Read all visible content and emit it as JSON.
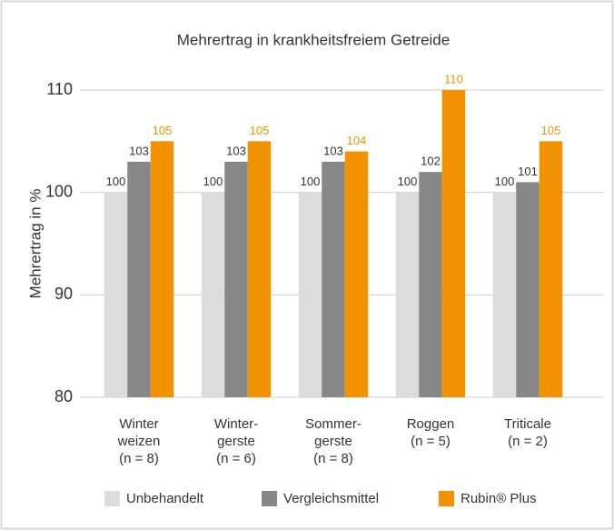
{
  "chart_data": {
    "type": "bar",
    "title": "Mehrertrag in krankheitsfreiem Getreide",
    "y_label": "Mehrertrag in %",
    "categories": [
      [
        "Winter",
        "weizen",
        "(n = 8)"
      ],
      [
        "Winter-",
        "gerste",
        "(n = 6)"
      ],
      [
        "Sommer-",
        "gerste",
        "(n = 8)"
      ],
      [
        "Roggen",
        "(n = 5)"
      ],
      [
        "Triticale",
        "(n = 2)"
      ]
    ],
    "series": [
      {
        "name": "Unbehandelt",
        "color": "#dcdcdc",
        "values": [
          100,
          100,
          100,
          100,
          100
        ]
      },
      {
        "name": "Vergleichsmittel",
        "color": "#878787",
        "values": [
          103,
          103,
          103,
          102,
          101
        ]
      },
      {
        "name": "Rubin® Plus",
        "color": "#f39200",
        "values": [
          105,
          105,
          104,
          110,
          105
        ]
      }
    ],
    "ylim": [
      80,
      110
    ],
    "yticks": [
      80,
      90,
      100,
      110
    ],
    "grid": true,
    "legend": "bottom"
  }
}
